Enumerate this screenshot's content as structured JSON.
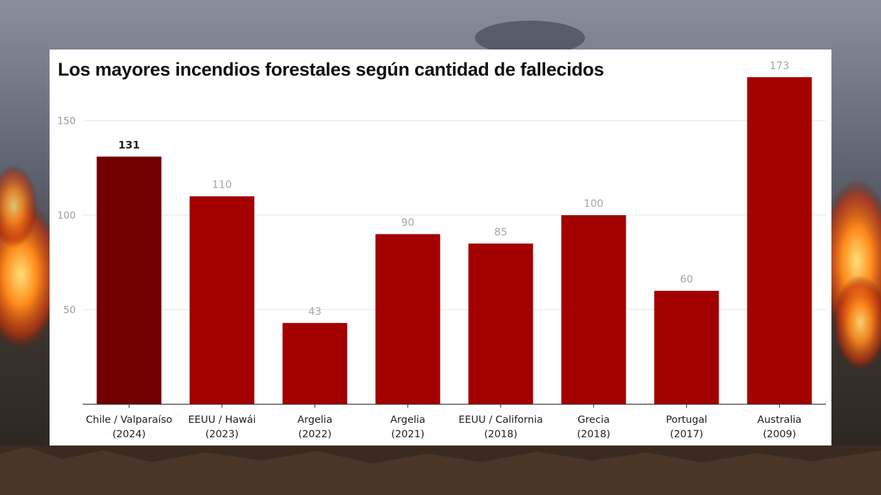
{
  "colors": {
    "bar": "#a30000",
    "bar_highlight": "#720000",
    "grid": "#e6e6e6",
    "axis": "#333333"
  },
  "chart_data": {
    "type": "bar",
    "title": "Los mayores incendios forestales según cantidad de fallecidos",
    "xlabel": "",
    "ylabel": "",
    "ylim": [
      0,
      175
    ],
    "yticks": [
      50,
      100,
      150
    ],
    "grid": true,
    "categories": [
      [
        "Chile / Valparaíso",
        "(2024)"
      ],
      [
        "EEUU / Hawái",
        "(2023)"
      ],
      [
        "Argelia",
        "(2022)"
      ],
      [
        "Argelia",
        "(2021)"
      ],
      [
        "EEUU / California",
        "(2018)"
      ],
      [
        "Grecia",
        "(2018)"
      ],
      [
        "Portugal",
        "(2017)"
      ],
      [
        "Australia",
        "(2009)"
      ]
    ],
    "values": [
      131,
      110,
      43,
      90,
      85,
      100,
      60,
      173
    ],
    "highlight_index": 0
  }
}
